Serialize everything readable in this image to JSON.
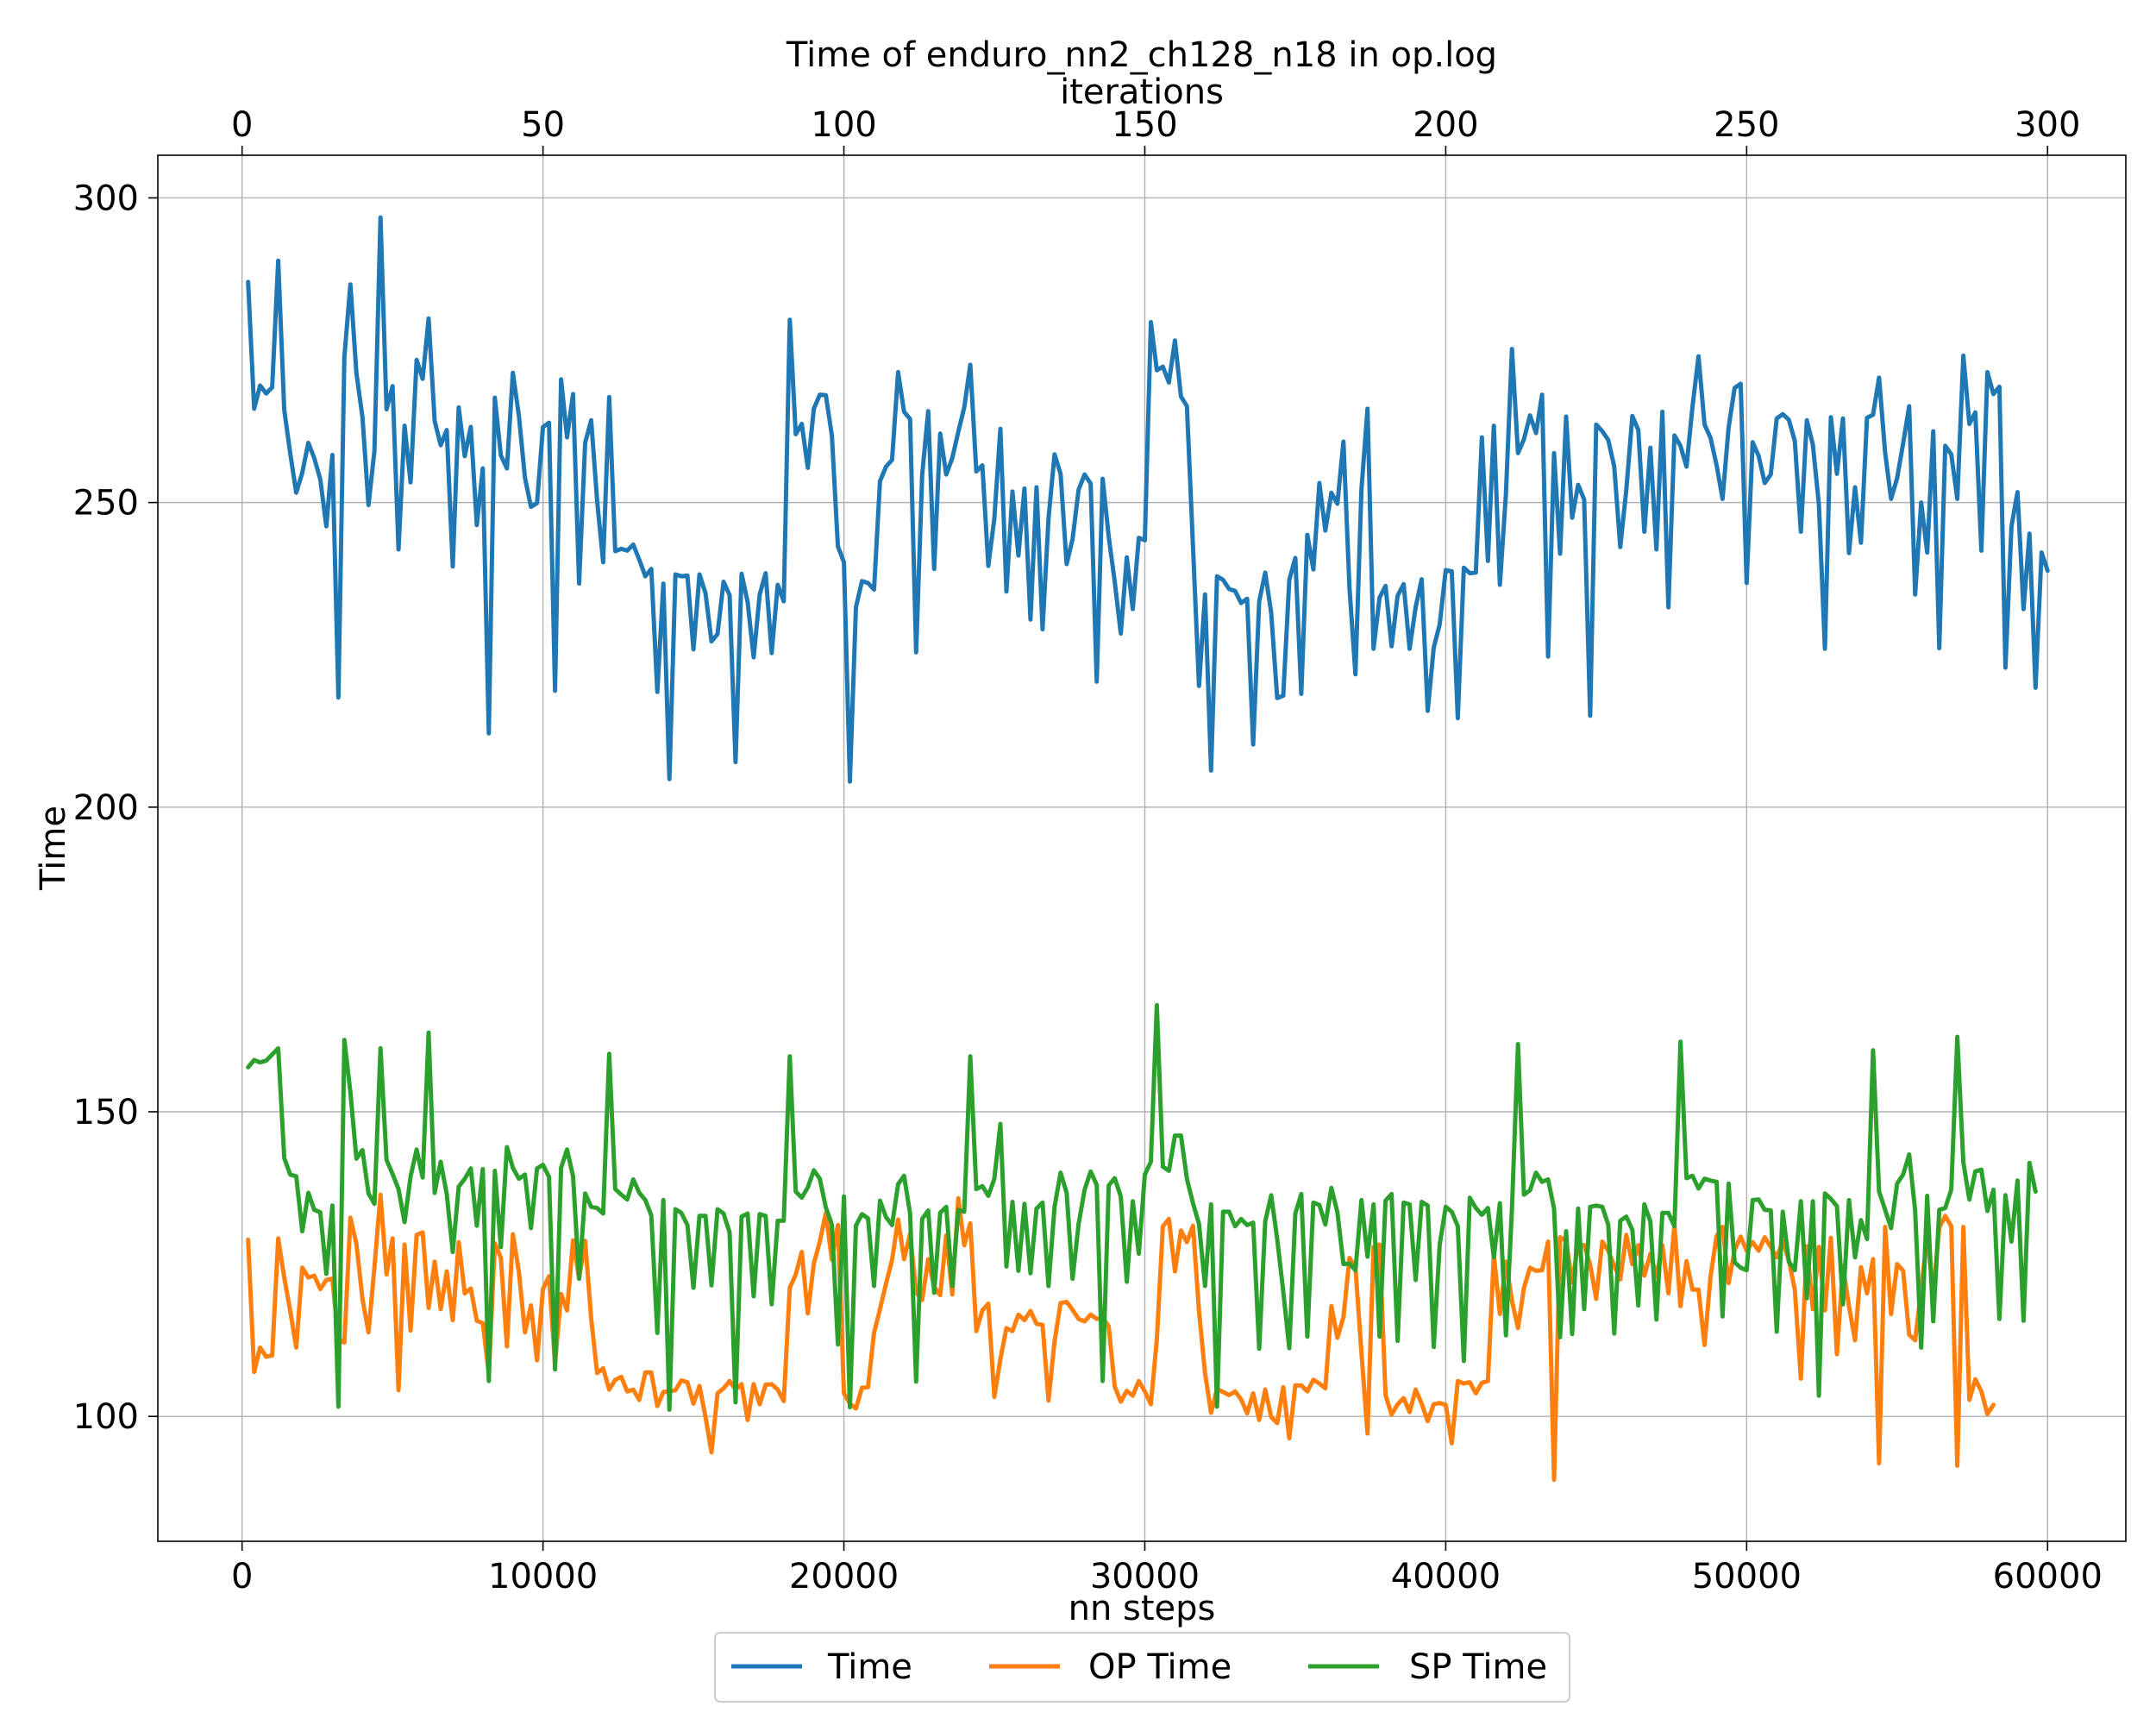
{
  "chart_data": {
    "type": "line",
    "title": "Time of enduro_nn2_ch128_n18 in op.log",
    "xlabel": "nn steps",
    "x2label": "iterations",
    "ylabel": "Time",
    "xlim": [
      -2800,
      62600
    ],
    "x2lim": [
      -14,
      313
    ],
    "ylim": [
      79.5,
      307
    ],
    "x_ticks": [
      0,
      10000,
      20000,
      30000,
      40000,
      50000,
      60000
    ],
    "x2_ticks": [
      0,
      50,
      100,
      150,
      200,
      250,
      300
    ],
    "y_ticks": [
      100,
      150,
      200,
      250,
      300
    ],
    "grid": true,
    "legend": {
      "placement": "bottom-center",
      "columns": 3
    },
    "series": [
      {
        "name": "Time",
        "color": "#1f77b4",
        "x_start": 200,
        "x_step": 200,
        "values": [
          286.2,
          265.4,
          269.2,
          267.9,
          268.9,
          289.7,
          265.2,
          258.1,
          251.6,
          254.9,
          259.8,
          257.3,
          253.8,
          246.1,
          257.8,
          218.0,
          273.9,
          285.8,
          271.2,
          264.0,
          249.6,
          258.5,
          296.8,
          265.3,
          269.1,
          242.3,
          262.6,
          253.3,
          273.4,
          270.3,
          280.2,
          263.4,
          259.4,
          261.9,
          239.5,
          265.6,
          257.6,
          262.4,
          246.3,
          255.6,
          212.1,
          267.2,
          257.7,
          255.6,
          271.3,
          264.2,
          254.1,
          249.3,
          249.9,
          262.4,
          263.1,
          219.1,
          270.2,
          260.7,
          267.8,
          236.7,
          259.8,
          263.5,
          250.3,
          240.2,
          267.3,
          242.0,
          242.4,
          242.1,
          243.1,
          240.6,
          237.9,
          239.1,
          218.9,
          236.7,
          204.6,
          238.2,
          237.9,
          238.0,
          225.9,
          238.2,
          235.1,
          227.2,
          228.4,
          237.0,
          234.8,
          207.4,
          238.3,
          233.7,
          224.6,
          234.9,
          238.4,
          225.3,
          236.5,
          233.8,
          280.0,
          261.2,
          262.9,
          255.7,
          265.4,
          267.7,
          267.6,
          261.0,
          242.8,
          240.2,
          204.2,
          232.8,
          237.1,
          236.8,
          235.7,
          253.5,
          255.9,
          257.0,
          271.4,
          264.9,
          263.7,
          225.4,
          254.5,
          265.0,
          239.1,
          261.3,
          254.6,
          257.3,
          261.6,
          265.6,
          272.6,
          255.1,
          256.1,
          239.6,
          247.4,
          262.1,
          235.4,
          251.8,
          241.3,
          252.3,
          230.8,
          252.5,
          229.2,
          247.4,
          257.9,
          254.7,
          239.9,
          244.0,
          252.1,
          254.6,
          253.1,
          220.6,
          253.9,
          244.4,
          237.0,
          228.5,
          241.0,
          232.5,
          244.2,
          243.8,
          279.6,
          271.7,
          272.3,
          269.7,
          276.6,
          267.4,
          265.8,
          242.9,
          219.9,
          234.9,
          206.0,
          237.9,
          237.3,
          235.8,
          235.5,
          233.5,
          234.2,
          210.3,
          233.8,
          238.5,
          231.9,
          217.9,
          218.3,
          237.3,
          240.9,
          218.6,
          244.7,
          239.0,
          253.2,
          245.4,
          251.6,
          249.8,
          260.0,
          236.0,
          221.8,
          252.2,
          265.4,
          226.0,
          234.4,
          236.3,
          226.4,
          234.7,
          236.6,
          226.0,
          232.8,
          237.4,
          215.8,
          226.2,
          230.0,
          238.9,
          238.7,
          214.6,
          239.3,
          238.4,
          238.5,
          260.7,
          240.4,
          262.6,
          236.5,
          251.4,
          275.2,
          258.1,
          260.4,
          264.3,
          261.4,
          267.7,
          224.7,
          258.1,
          241.6,
          264.1,
          247.5,
          252.9,
          250.5,
          215.0,
          262.8,
          261.7,
          260.3,
          255.9,
          242.7,
          252.1,
          264.2,
          261.9,
          245.2,
          259.0,
          242.3,
          264.9,
          232.8,
          261.0,
          259.3,
          255.9,
          265.7,
          274.0,
          262.8,
          260.6,
          256.1,
          250.6,
          262.3,
          268.8,
          269.5,
          236.8,
          259.9,
          257.6,
          253.2,
          254.6,
          263.8,
          264.5,
          263.6,
          260.1,
          245.2,
          263.5,
          259.5,
          249.7,
          226.0,
          264.0,
          254.7,
          263.8,
          241.7,
          252.5,
          243.4,
          263.9,
          264.4,
          270.5,
          258.2,
          250.6,
          254.0,
          259.7,
          265.8,
          234.9,
          250.0,
          241.8,
          261.7,
          226.1,
          259.3,
          257.9,
          250.6,
          274.1,
          262.9,
          264.8,
          242.1,
          271.4,
          267.8,
          269.0,
          222.9,
          246.1,
          251.7,
          232.5,
          244.9,
          219.6,
          241.8,
          238.8
        ]
      },
      {
        "name": "OP Time",
        "color": "#ff7f0e",
        "x_start": 200,
        "x_step": 200,
        "values": [
          129.0,
          107.3,
          111.3,
          109.8,
          110.0,
          129.2,
          122.8,
          117.3,
          111.3,
          124.4,
          122.8,
          123.1,
          120.9,
          122.4,
          122.6,
          112.7,
          112.1,
          132.6,
          128.3,
          119.3,
          113.8,
          124.5,
          136.4,
          123.3,
          129.2,
          104.3,
          128.2,
          114.1,
          129.8,
          130.2,
          117.8,
          125.4,
          117.6,
          123.8,
          115.8,
          128.6,
          120.2,
          121.0,
          115.7,
          115.3,
          106.9,
          128.4,
          126.0,
          111.5,
          129.9,
          123.7,
          113.8,
          118.2,
          109.2,
          120.9,
          123.0,
          108.6,
          120.1,
          117.4,
          128.9,
          122.7,
          128.8,
          116.1,
          107.1,
          107.9,
          104.4,
          106.0,
          106.5,
          104.1,
          104.4,
          102.7,
          107.2,
          107.2,
          101.7,
          104.0,
          104.1,
          104.3,
          105.9,
          105.6,
          102.1,
          105.0,
          99.9,
          94.1,
          103.8,
          104.6,
          105.8,
          104.4,
          105.3,
          99.4,
          105.3,
          102.0,
          105.2,
          105.3,
          104.4,
          102.5,
          121.1,
          123.3,
          127.0,
          116.9,
          125.1,
          128.7,
          133.4,
          125.7,
          131.4,
          103.8,
          102.1,
          101.3,
          104.7,
          104.8,
          113.7,
          117.6,
          121.8,
          125.7,
          132.3,
          125.8,
          130.0,
          120.3,
          119.1,
          125.8,
          121.2,
          119.9,
          129.7,
          120.0,
          135.8,
          128.1,
          131.7,
          114.0,
          117.4,
          118.5,
          103.2,
          109.4,
          114.5,
          114.0,
          116.7,
          115.8,
          117.3,
          115.2,
          115.0,
          102.6,
          112.3,
          118.6,
          118.8,
          117.5,
          116.0,
          115.6,
          116.7,
          116.0,
          116.2,
          114.8,
          104.9,
          102.4,
          104.2,
          103.4,
          105.8,
          104.1,
          102.0,
          112.6,
          131.2,
          132.4,
          123.8,
          130.5,
          128.6,
          131.3,
          117.3,
          107.1,
          100.6,
          104.5,
          104.0,
          103.5,
          104.1,
          102.8,
          100.5,
          103.8,
          99.4,
          104.4,
          99.9,
          98.9,
          104.8,
          96.4,
          105.1,
          105.1,
          104.1,
          106.0,
          105.4,
          104.6,
          118.1,
          112.9,
          116.3,
          126.0,
          124.5,
          110.4,
          97.2,
          127.8,
          128.2,
          103.5,
          100.3,
          102.0,
          103.0,
          100.7,
          104.4,
          102.1,
          99.2,
          102.0,
          102.2,
          101.9,
          95.6,
          105.8,
          105.4,
          105.6,
          103.8,
          105.5,
          105.8,
          126.5,
          116.8,
          125.4,
          119.0,
          114.5,
          121.1,
          124.4,
          123.9,
          124.0,
          128.7,
          89.6,
          129.4,
          128.8,
          122.0,
          128.2,
          128.1,
          124.9,
          119.3,
          128.7,
          127.2,
          124.7,
          122.5,
          129.8,
          125.0,
          128.1,
          123.1,
          126.7,
          123.0,
          128.1,
          120.2,
          131.4,
          118.1,
          125.5,
          120.8,
          120.8,
          111.7,
          123.0,
          129.6,
          131.1,
          121.9,
          127.3,
          129.5,
          127.2,
          128.6,
          127.2,
          129.4,
          127.8,
          126.1,
          128.7,
          125.7,
          120.8,
          106.2,
          127.9,
          117.6,
          127.8,
          117.4,
          129.3,
          110.2,
          124.7,
          118.1,
          112.5,
          124.5,
          120.2,
          125.8,
          92.3,
          131.1,
          116.8,
          125.0,
          123.9,
          113.4,
          112.5,
          120.8,
          129.6,
          120.2,
          131.0,
          132.9,
          131.2,
          91.9,
          131.1,
          102.7,
          106.1,
          104.1,
          100.4,
          101.9
        ]
      },
      {
        "name": "SP Time",
        "color": "#2ca02c",
        "x_start": 200,
        "x_step": 200,
        "values": [
          157.3,
          158.5,
          158.1,
          158.4,
          159.4,
          160.4,
          142.4,
          139.7,
          139.4,
          130.4,
          136.7,
          133.9,
          133.5,
          123.4,
          134.6,
          101.6,
          161.8,
          153.2,
          142.3,
          143.7,
          136.6,
          134.9,
          160.4,
          142.1,
          139.8,
          137.3,
          131.9,
          139.4,
          143.8,
          139.2,
          163.0,
          136.7,
          141.8,
          136.5,
          127.0,
          137.7,
          139.0,
          140.7,
          131.3,
          140.6,
          105.8,
          140.3,
          127.8,
          144.2,
          140.8,
          139.0,
          139.7,
          130.9,
          140.7,
          141.3,
          139.3,
          107.7,
          140.8,
          143.8,
          139.4,
          122.6,
          136.6,
          134.4,
          134.2,
          133.3,
          159.5,
          137.3,
          136.4,
          135.6,
          138.9,
          136.7,
          135.5,
          133.0,
          113.7,
          135.5,
          101.1,
          134.0,
          133.4,
          131.4,
          121.1,
          132.9,
          132.9,
          121.5,
          134.0,
          133.3,
          130.2,
          102.3,
          132.8,
          133.3,
          119.7,
          133.2,
          132.9,
          118.4,
          132.1,
          132.1,
          159.1,
          136.9,
          135.9,
          137.6,
          140.4,
          139.0,
          134.3,
          131.5,
          111.8,
          136.1,
          101.5,
          131.3,
          133.2,
          132.5,
          121.4,
          135.4,
          132.7,
          131.4,
          138.1,
          139.5,
          133.3,
          105.7,
          132.4,
          133.8,
          120.3,
          133.4,
          134.4,
          121.4,
          133.9,
          133.6,
          159.1,
          137.3,
          137.8,
          136.2,
          139.0,
          148.0,
          124.6,
          135.2,
          123.9,
          134.9,
          123.5,
          134.1,
          135.1,
          121.4,
          134.4,
          140.0,
          136.7,
          122.6,
          131.6,
          137.2,
          140.2,
          138.0,
          105.8,
          137.9,
          139.1,
          136.1,
          122.1,
          135.3,
          126.7,
          139.7,
          141.8,
          167.5,
          141.0,
          140.3,
          146.1,
          146.1,
          139.0,
          135.0,
          131.6,
          121.4,
          134.8,
          101.6,
          133.6,
          133.6,
          131.2,
          132.4,
          131.4,
          131.8,
          111.1,
          132.0,
          136.3,
          129.1,
          120.5,
          111.2,
          133.3,
          136.5,
          113.1,
          135.1,
          134.7,
          131.5,
          137.5,
          133.5,
          125.0,
          125.1,
          124.0,
          135.5,
          126.2,
          134.8,
          113.1,
          135.4,
          136.5,
          112.4,
          135.1,
          134.8,
          122.4,
          135.2,
          134.6,
          111.4,
          128.2,
          134.4,
          133.6,
          131.2,
          109.1,
          135.9,
          134.2,
          133.1,
          134.2,
          126.1,
          135.0,
          113.3,
          134.1,
          161.1,
          136.4,
          137.1,
          140.0,
          138.5,
          138.9,
          134.1,
          113.0,
          130.4,
          113.5,
          134.1,
          117.6,
          134.4,
          134.6,
          134.4,
          131.5,
          113.6,
          132.1,
          132.8,
          130.6,
          118.2,
          134.8,
          132.0,
          115.9,
          133.4,
          133.4,
          131.2,
          161.5,
          139.1,
          139.5,
          137.4,
          139.0,
          138.7,
          138.5,
          116.4,
          138.2,
          125.3,
          124.4,
          124.0,
          135.5,
          135.6,
          133.9,
          133.8,
          113.9,
          133.6,
          125.4,
          124.0,
          135.3,
          119.4,
          135.3,
          103.4,
          136.6,
          135.7,
          134.5,
          118.4,
          135.5,
          126.1,
          132.2,
          129.1,
          160.1,
          136.9,
          133.9,
          130.9,
          138.2,
          139.7,
          143.0,
          133.8,
          111.3,
          136.2,
          115.6,
          133.9,
          134.2,
          137.2,
          162.3,
          141.7,
          135.6,
          140.2,
          140.5,
          133.7,
          137.2,
          116.0,
          136.3,
          128.7,
          138.7,
          115.7,
          141.6,
          136.9
        ]
      }
    ]
  }
}
